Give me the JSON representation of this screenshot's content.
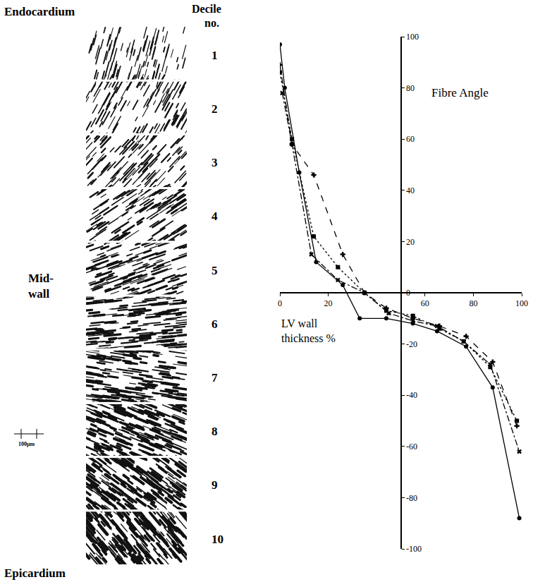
{
  "chart_data": {
    "type": "line",
    "x_label": "LV wall thickness %",
    "y_label": "Fibre Angle",
    "xlim": [
      0,
      100
    ],
    "ylim": [
      -100,
      100
    ],
    "xticks": [
      0,
      20,
      60,
      80,
      100
    ],
    "yticks": [
      100,
      80,
      60,
      40,
      20,
      0,
      -20,
      -40,
      -60,
      -80,
      -100
    ],
    "grid": false,
    "series": [
      {
        "color": "#000000",
        "line_style": "solid",
        "marker": "circle",
        "x": [
          0,
          2,
          8,
          15,
          26,
          33,
          44,
          55,
          65,
          77,
          88,
          99
        ],
        "values": [
          97,
          80,
          47,
          12,
          3,
          -10,
          -10,
          -12,
          -15,
          -21,
          -37,
          -88
        ]
      },
      {
        "color": "#000000",
        "line_style": "dash",
        "marker": "cross",
        "x": [
          0,
          5,
          14,
          26,
          35,
          44,
          55,
          66,
          77,
          88,
          98
        ],
        "values": [
          89,
          58,
          46,
          15,
          0,
          -6,
          -10,
          -13,
          -17,
          -27,
          -52
        ]
      },
      {
        "color": "#000000",
        "line_style": "dot",
        "marker": "square",
        "x": [
          0,
          5,
          14,
          24,
          35,
          44,
          55,
          66,
          76,
          87,
          98
        ],
        "values": [
          86,
          60,
          22,
          10,
          0,
          -7,
          -9,
          -14,
          -19,
          -29,
          -50
        ]
      },
      {
        "color": "#000000",
        "line_style": "dashdot",
        "marker": "x",
        "x": [
          1,
          5,
          13,
          24,
          35,
          45,
          55,
          65,
          76,
          87,
          99
        ],
        "values": [
          78,
          58,
          15,
          5,
          0,
          -8,
          -11,
          -13,
          -19,
          -28,
          -62
        ]
      }
    ]
  },
  "histology_panel": {
    "top_label": "Endocardium",
    "bottom_label": "Epicardium",
    "middle_label": "Mid-wall",
    "decile_header": "Decile no.",
    "deciles": [
      1,
      2,
      3,
      4,
      5,
      6,
      7,
      8,
      9,
      10
    ],
    "scale_bar": "100μm"
  }
}
